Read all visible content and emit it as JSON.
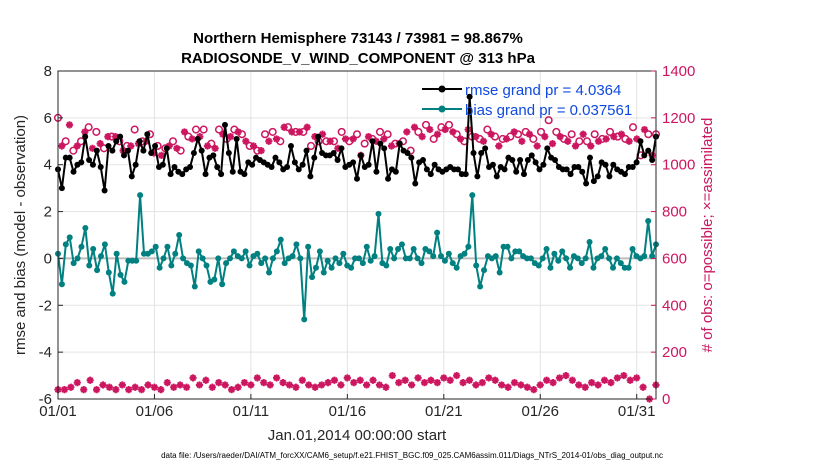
{
  "chart_data": {
    "type": "line",
    "title": "Northern Hemisphere 73143 / 73981 = 98.867%",
    "subtitle": "RADIOSONDE_V_WIND_COMPONENT @ 313 hPa",
    "xlabel": "Jan.01,2014 00:00:00 start",
    "ylabel": "rmse and bias (model - observation)",
    "ylabel_right": "# of obs: o=possible; ×=assimilated",
    "footnote": "data file: /Users/raeder/DAI/ATM_forcXX/CAM6_setup/f.e21.FHIST_BGC.f09_025.CAM6assim.011/Diags_NTrS_2014-01/obs_diag_output.nc",
    "x_tick_labels": [
      "01/01",
      "01/06",
      "01/11",
      "01/16",
      "01/21",
      "01/26",
      "01/31"
    ],
    "x_tick_days": [
      1,
      6,
      11,
      16,
      21,
      26,
      31
    ],
    "xlim": [
      1,
      32
    ],
    "ylim": [
      -6,
      8
    ],
    "y_ticks": [
      -6,
      -4,
      -2,
      0,
      2,
      4,
      6,
      8
    ],
    "y2lim": [
      0,
      1400
    ],
    "y2_ticks": [
      0,
      200,
      400,
      600,
      800,
      1000,
      1200,
      1400
    ],
    "colors": {
      "rmse": "#000000",
      "bias": "#008080",
      "obs": "#cc1660",
      "zero_line": "#bdbdbd",
      "grid": "#e3e3e3",
      "legend_text": "#0e49e0"
    },
    "series": [
      {
        "name": "rmse grand pr = 4.0364",
        "axis": "left",
        "values": [
          3.8,
          3.0,
          4.3,
          4.3,
          3.7,
          4.0,
          4.1,
          5.2,
          4.2,
          4.0,
          4.6,
          3.9,
          2.9,
          4.8,
          4.6,
          5.0,
          5.2,
          4.4,
          4.6,
          3.5,
          4.0,
          5.0,
          4.6,
          5.3,
          4.5,
          4.8,
          3.9,
          4.0,
          4.7,
          3.6,
          3.9,
          3.7,
          3.6,
          3.8,
          3.9,
          4.5,
          5.1,
          4.6,
          3.6,
          4.3,
          4.4,
          3.9,
          3.6,
          5.7,
          4.5,
          3.7,
          5.1,
          3.7,
          3.6,
          4.1,
          4.0,
          4.3,
          4.2,
          4.1,
          4.0,
          3.9,
          4.3,
          4.1,
          3.8,
          3.9,
          4.8,
          4.1,
          3.8,
          4.0,
          4.6,
          3.5,
          4.3,
          5.2,
          4.5,
          4.4,
          4.4,
          4.5,
          4.2,
          4.7,
          3.9,
          4.0,
          4.1,
          3.4,
          4.4,
          3.9,
          4.0,
          5.0,
          3.7,
          4.9,
          4.7,
          3.4,
          3.8,
          3.7,
          4.9,
          4.6,
          4.5,
          4.3,
          3.2,
          4.1,
          4.2,
          3.8,
          3.6,
          4.0,
          3.8,
          3.7,
          3.8,
          3.9,
          3.8,
          3.8,
          3.6,
          3.6,
          6.9,
          4.5,
          3.5,
          4.5,
          4.7,
          3.9,
          4.0,
          3.5,
          3.9,
          3.8,
          4.3,
          4.2,
          3.7,
          4.2,
          3.6,
          4.2,
          4.4,
          4.1,
          3.8,
          4.0,
          4.7,
          4.3,
          4.2,
          3.9,
          3.8,
          3.8,
          3.6,
          3.9,
          3.9,
          3.7,
          3.2,
          4.3,
          3.3,
          3.5,
          4.1,
          4.0,
          3.5,
          4.0,
          3.8,
          3.7,
          3.6,
          3.9,
          3.9,
          4.1,
          5.0,
          4.4,
          4.6,
          4.2,
          5.2
        ]
      },
      {
        "name": "bias grand pr = 0.037561",
        "axis": "left",
        "values": [
          0.2,
          -1.1,
          0.6,
          0.9,
          -0.2,
          0.0,
          0.5,
          1.3,
          -0.3,
          0.4,
          -0.5,
          0.1,
          0.6,
          -0.6,
          -1.5,
          0.2,
          -0.7,
          -1.0,
          -0.1,
          -0.1,
          -0.1,
          2.7,
          0.2,
          0.2,
          0.3,
          0.5,
          -0.4,
          0.0,
          0.5,
          -0.3,
          0.2,
          1.0,
          0.0,
          -0.2,
          -0.3,
          -1.2,
          0.3,
          0.0,
          -0.3,
          -1.0,
          -0.9,
          0.0,
          -1.1,
          -0.2,
          0.0,
          0.3,
          0.1,
          0.0,
          0.3,
          -0.3,
          0.1,
          0.2,
          -0.2,
          0.0,
          -0.6,
          0.0,
          0.3,
          0.8,
          -0.2,
          0.0,
          0.1,
          0.6,
          0.0,
          -2.6,
          0.5,
          -0.8,
          -0.4,
          0.3,
          -0.6,
          -0.1,
          -0.4,
          0.0,
          -0.2,
          0.2,
          -0.3,
          -0.4,
          0.0,
          0.0,
          -0.2,
          0.5,
          -0.1,
          0.1,
          1.9,
          -0.2,
          -0.3,
          0.4,
          0.0,
          0.4,
          0.6,
          0.0,
          0.0,
          0.4,
          0.0,
          -0.2,
          0.4,
          0.3,
          0.1,
          1.1,
          0.1,
          -0.1,
          0.2,
          -0.2,
          -0.4,
          0.1,
          0.2,
          0.5,
          2.7,
          -0.3,
          -1.2,
          -0.5,
          0.1,
          0.0,
          0.1,
          -0.6,
          0.5,
          0.5,
          0.0,
          0.3,
          0.3,
          0.1,
          0.0,
          0.0,
          -0.2,
          -0.3,
          0.0,
          0.4,
          -0.4,
          0.2,
          -0.1,
          0.3,
          0.0,
          -0.4,
          0.1,
          0.0,
          -0.2,
          0.0,
          0.7,
          -0.4,
          0.0,
          0.1,
          0.4,
          0.0,
          -0.4,
          0.0,
          -0.2,
          -0.4,
          -0.4,
          0.4,
          0.1,
          0.0,
          0.1,
          1.6,
          0.1,
          0.6
        ]
      },
      {
        "name": "obs possible",
        "axis": "right",
        "marker": "o",
        "values": [
          1200,
          1090,
          1100,
          1180,
          1060,
          1090,
          1100,
          1150,
          1160,
          1080,
          1140,
          1100,
          1070,
          1130,
          1120,
          1130,
          1100,
          1070,
          1080,
          1090,
          1150,
          1100,
          1100,
          1110,
          1130,
          1060,
          1080,
          1050,
          1070,
          1090,
          1100,
          1080,
          1060,
          1150,
          1120,
          1120,
          1150,
          1130,
          1150,
          1090,
          1090,
          1080,
          1150,
          1140,
          1110,
          1130,
          1150,
          1150,
          1130,
          1110,
          1080,
          1090,
          1060,
          1070,
          1130,
          1110,
          1140,
          1120,
          1100,
          1170,
          1160,
          1150,
          1140,
          1150,
          1140,
          1170,
          1080,
          1130,
          1100,
          1140,
          1100,
          1110,
          1100,
          1080,
          1140,
          1120,
          1100,
          1120,
          1130,
          1050,
          1090,
          1130,
          1110,
          1110,
          1140,
          1120,
          1130,
          1090,
          1090,
          1100,
          1100,
          1150,
          1060,
          1170,
          1140,
          1130,
          1170,
          1160,
          1110,
          1140,
          1160,
          1160,
          1170,
          1150,
          1130,
          1120,
          1100,
          1160,
          1120,
          1130,
          1110,
          1110,
          1150,
          1140,
          1120,
          1090,
          1110,
          1120,
          1120,
          1150,
          1130,
          1110,
          1140,
          1140,
          1110,
          1090,
          1140,
          1130,
          1190,
          1100,
          1140,
          1130,
          1110,
          1110,
          1130,
          1090,
          1100,
          1140,
          1100,
          1090,
          1130,
          1110,
          1110,
          1120,
          1140,
          1130,
          1120,
          1140,
          1110,
          1110,
          1160,
          1120,
          1040,
          1160,
          1130,
          1050,
          1130
        ]
      },
      {
        "name": "obs assimilated",
        "axis": "right",
        "marker": "x",
        "values": [
          1190,
          1080,
          1090,
          1170,
          1050,
          1080,
          1090,
          1140,
          1150,
          1070,
          1130,
          1090,
          1060,
          1120,
          1110,
          1120,
          1090,
          1060,
          1070,
          1080,
          1140,
          1090,
          1090,
          1100,
          1120,
          1050,
          1070,
          1040,
          1060,
          1080,
          1090,
          1070,
          1050,
          1140,
          1110,
          1110,
          1140,
          1120,
          1140,
          1080,
          1080,
          1070,
          1140,
          1130,
          1100,
          1120,
          1140,
          1140,
          1120,
          1100,
          1070,
          1080,
          1050,
          1060,
          1120,
          1100,
          1130,
          1110,
          1090,
          1160,
          1150,
          1140,
          1130,
          1140,
          1130,
          1160,
          1070,
          1120,
          1090,
          1130,
          1090,
          1100,
          1090,
          1070,
          1130,
          1110,
          1090,
          1110,
          1120,
          1040,
          1080,
          1120,
          1100,
          1100,
          1130,
          1110,
          1120,
          1080,
          1080,
          1090,
          1090,
          1140,
          1050,
          1160,
          1130,
          1120,
          1160,
          1150,
          1100,
          1130,
          1150,
          1150,
          1160,
          1140,
          1120,
          1110,
          1090,
          1150,
          1110,
          1120,
          1100,
          1100,
          1140,
          1130,
          1110,
          1080,
          1100,
          1110,
          1110,
          1140,
          1120,
          1100,
          1130,
          1130,
          1100,
          1080,
          1130,
          1120,
          1180,
          1090,
          1130,
          1120,
          1100,
          1100,
          1120,
          1080,
          1090,
          1130,
          1090,
          1080,
          1120,
          1100,
          1100,
          1110,
          1130,
          1120,
          1110,
          1130,
          1100,
          1100,
          1150,
          1110,
          1030,
          1150,
          1120,
          1040,
          1120
        ]
      },
      {
        "name": "obs possible (low)",
        "axis": "right",
        "marker": "o",
        "values": [
          40,
          40,
          50,
          70,
          40,
          80,
          40,
          60,
          50,
          40,
          60,
          40,
          50,
          40,
          60,
          50,
          40,
          70,
          50,
          60,
          50,
          90,
          60,
          80,
          50,
          70,
          60,
          40,
          50,
          70,
          60,
          90,
          70,
          60,
          90,
          70,
          60,
          50,
          80,
          60,
          50,
          60,
          70,
          80,
          60,
          90,
          70,
          80,
          60,
          80,
          60,
          50,
          100,
          70,
          80,
          60,
          90,
          70,
          80,
          70,
          90,
          80,
          100,
          70,
          80,
          60,
          70,
          90,
          80,
          60,
          50,
          70,
          60,
          50,
          40,
          60,
          80,
          70,
          90,
          100,
          80,
          60,
          50,
          70,
          60,
          80,
          70,
          90,
          100,
          80,
          90,
          50,
          0,
          60,
          40
        ]
      }
    ],
    "obs_low_x_start": 1.0,
    "obs_low_x_step": 0.3333,
    "legend": {
      "location": "top-right",
      "entries": [
        "rmse grand pr = 4.0364",
        "bias grand pr = 0.037561"
      ]
    }
  }
}
